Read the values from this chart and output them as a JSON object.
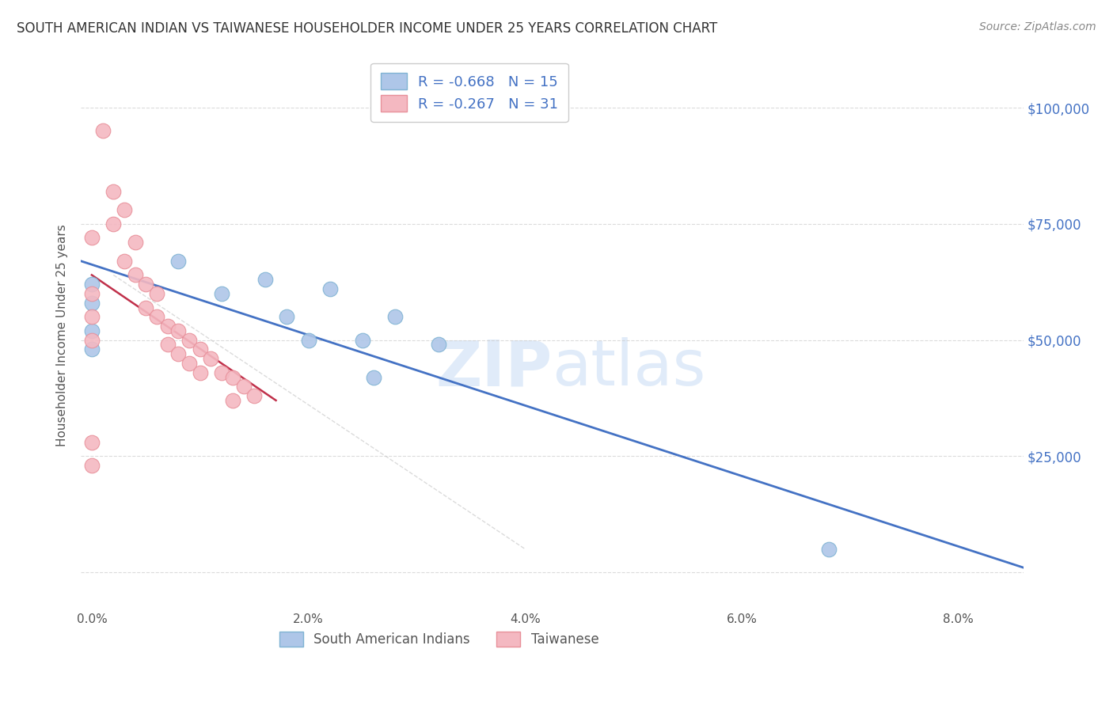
{
  "title": "SOUTH AMERICAN INDIAN VS TAIWANESE HOUSEHOLDER INCOME UNDER 25 YEARS CORRELATION CHART",
  "source": "Source: ZipAtlas.com",
  "ylabel": "Householder Income Under 25 years",
  "watermark": "ZIPatlas",
  "legend_entries": [
    {
      "r_label": "R = ",
      "r_val": "-0.668",
      "n_label": "   N = ",
      "n_val": "15",
      "color": "#aec6e8",
      "edge": "#7fb3d3"
    },
    {
      "r_label": "R = ",
      "r_val": "-0.267",
      "n_label": "   N = ",
      "n_val": "31",
      "color": "#f4b8c1",
      "edge": "#e8909a"
    }
  ],
  "legend_labels_bottom": [
    "South American Indians",
    "Taiwanese"
  ],
  "yticks": [
    0,
    25000,
    50000,
    75000,
    100000
  ],
  "ytick_labels": [
    "",
    "$25,000",
    "$50,000",
    "$75,000",
    "$100,000"
  ],
  "xticks": [
    0.0,
    0.01,
    0.02,
    0.03,
    0.04,
    0.05,
    0.06,
    0.07,
    0.08
  ],
  "xtick_labels": [
    "0.0%",
    "",
    "2.0%",
    "",
    "4.0%",
    "",
    "6.0%",
    "",
    "8.0%"
  ],
  "xlim": [
    -0.001,
    0.086
  ],
  "ylim": [
    -8000,
    110000
  ],
  "blue_scatter_x": [
    0.008,
    0.012,
    0.016,
    0.018,
    0.02,
    0.022,
    0.025,
    0.026,
    0.028,
    0.032,
    0.0,
    0.068,
    0.0,
    0.0,
    0.0
  ],
  "blue_scatter_y": [
    67000,
    60000,
    63000,
    55000,
    50000,
    61000,
    50000,
    42000,
    55000,
    49000,
    62000,
    5000,
    58000,
    52000,
    48000
  ],
  "pink_scatter_x": [
    0.001,
    0.002,
    0.002,
    0.003,
    0.003,
    0.004,
    0.004,
    0.005,
    0.005,
    0.006,
    0.006,
    0.007,
    0.007,
    0.008,
    0.008,
    0.009,
    0.009,
    0.01,
    0.01,
    0.011,
    0.012,
    0.013,
    0.013,
    0.014,
    0.015,
    0.0,
    0.0,
    0.0,
    0.0,
    0.0,
    0.0
  ],
  "pink_scatter_y": [
    95000,
    82000,
    75000,
    78000,
    67000,
    71000,
    64000,
    62000,
    57000,
    60000,
    55000,
    53000,
    49000,
    52000,
    47000,
    50000,
    45000,
    48000,
    43000,
    46000,
    43000,
    42000,
    37000,
    40000,
    38000,
    72000,
    60000,
    55000,
    50000,
    28000,
    23000
  ],
  "blue_line_x": [
    -0.001,
    0.086
  ],
  "blue_line_y": [
    67000,
    1000
  ],
  "pink_line_x": [
    0.0,
    0.017
  ],
  "pink_line_y": [
    64000,
    37000
  ],
  "gray_line_x": [
    0.002,
    0.04
  ],
  "gray_line_y": [
    64000,
    5000
  ],
  "title_fontsize": 12,
  "ytick_color": "#4472c4",
  "scatter_blue_color": "#aec6e8",
  "scatter_pink_color": "#f4b8c1",
  "scatter_blue_edge": "#7fb3d3",
  "scatter_pink_edge": "#e8909a",
  "blue_line_color": "#4472c4",
  "pink_line_color": "#c0304a",
  "gray_line_color": "#cccccc",
  "grid_color": "#cccccc",
  "background_color": "#ffffff",
  "text_dark": "#333333",
  "text_blue": "#4472c4",
  "text_gray": "#888888"
}
